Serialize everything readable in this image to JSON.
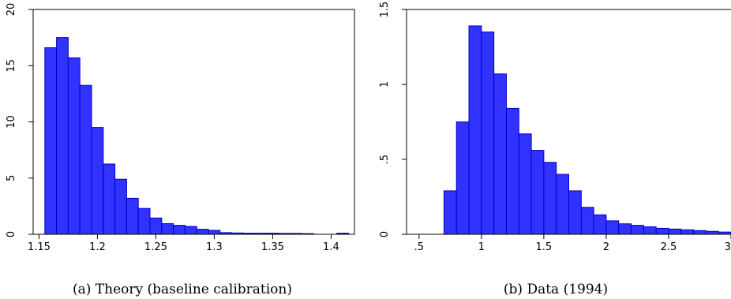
{
  "chart_data": [
    {
      "type": "bar",
      "caption": "(a)  Theory (baseline calibration)",
      "bar_color": "#3232ff",
      "xlim": [
        1.145,
        1.42
      ],
      "ylim": [
        0,
        20
      ],
      "xticks": [
        {
          "value": 1.15,
          "label": "1.15"
        },
        {
          "value": 1.2,
          "label": "1.2"
        },
        {
          "value": 1.25,
          "label": "1.25"
        },
        {
          "value": 1.3,
          "label": "1.3"
        },
        {
          "value": 1.35,
          "label": "1.35"
        },
        {
          "value": 1.4,
          "label": "1.4"
        }
      ],
      "yticks": [
        {
          "value": 0,
          "label": "0"
        },
        {
          "value": 5,
          "label": "5"
        },
        {
          "value": 10,
          "label": "10"
        },
        {
          "value": 15,
          "label": "15"
        },
        {
          "value": 20,
          "label": "20"
        }
      ],
      "bin_width": 0.01,
      "bins": [
        {
          "x0": 1.155,
          "value": 16.6
        },
        {
          "x0": 1.165,
          "value": 17.5
        },
        {
          "x0": 1.175,
          "value": 15.7
        },
        {
          "x0": 1.185,
          "value": 13.25
        },
        {
          "x0": 1.195,
          "value": 9.5
        },
        {
          "x0": 1.205,
          "value": 6.25
        },
        {
          "x0": 1.215,
          "value": 4.9
        },
        {
          "x0": 1.225,
          "value": 3.2
        },
        {
          "x0": 1.235,
          "value": 2.3
        },
        {
          "x0": 1.245,
          "value": 1.45
        },
        {
          "x0": 1.255,
          "value": 0.95
        },
        {
          "x0": 1.265,
          "value": 0.8
        },
        {
          "x0": 1.275,
          "value": 0.7
        },
        {
          "x0": 1.285,
          "value": 0.45
        },
        {
          "x0": 1.295,
          "value": 0.35
        },
        {
          "x0": 1.305,
          "value": 0.15
        },
        {
          "x0": 1.315,
          "value": 0.12
        },
        {
          "x0": 1.325,
          "value": 0.1
        },
        {
          "x0": 1.335,
          "value": 0.1
        },
        {
          "x0": 1.345,
          "value": 0.1
        },
        {
          "x0": 1.355,
          "value": 0.08
        },
        {
          "x0": 1.365,
          "value": 0.08
        },
        {
          "x0": 1.375,
          "value": 0.06
        },
        {
          "x0": 1.405,
          "value": 0.1
        }
      ]
    },
    {
      "type": "bar",
      "caption": "(b)  Data (1994)",
      "bar_color": "#3232ff",
      "xlim": [
        0.4,
        3.0
      ],
      "ylim": [
        0,
        1.5
      ],
      "xticks": [
        {
          "value": 0.5,
          "label": ".5"
        },
        {
          "value": 1,
          "label": "1"
        },
        {
          "value": 1.5,
          "label": "1.5"
        },
        {
          "value": 2,
          "label": "2"
        },
        {
          "value": 2.5,
          "label": "2.5"
        },
        {
          "value": 3,
          "label": "3"
        }
      ],
      "yticks": [
        {
          "value": 0,
          "label": "0"
        },
        {
          "value": 0.5,
          "label": ".5"
        },
        {
          "value": 1,
          "label": "1"
        },
        {
          "value": 1.5,
          "label": "1.5"
        }
      ],
      "bin_width": 0.1,
      "bins": [
        {
          "x0": 0.7,
          "value": 0.29
        },
        {
          "x0": 0.8,
          "value": 0.75
        },
        {
          "x0": 0.9,
          "value": 1.39
        },
        {
          "x0": 1.0,
          "value": 1.35
        },
        {
          "x0": 1.1,
          "value": 1.07
        },
        {
          "x0": 1.2,
          "value": 0.84
        },
        {
          "x0": 1.3,
          "value": 0.67
        },
        {
          "x0": 1.4,
          "value": 0.56
        },
        {
          "x0": 1.5,
          "value": 0.48
        },
        {
          "x0": 1.6,
          "value": 0.4
        },
        {
          "x0": 1.7,
          "value": 0.29
        },
        {
          "x0": 1.8,
          "value": 0.18
        },
        {
          "x0": 1.9,
          "value": 0.13
        },
        {
          "x0": 2.0,
          "value": 0.09
        },
        {
          "x0": 2.1,
          "value": 0.07
        },
        {
          "x0": 2.2,
          "value": 0.06
        },
        {
          "x0": 2.3,
          "value": 0.05
        },
        {
          "x0": 2.4,
          "value": 0.04
        },
        {
          "x0": 2.5,
          "value": 0.035
        },
        {
          "x0": 2.6,
          "value": 0.03
        },
        {
          "x0": 2.7,
          "value": 0.025
        },
        {
          "x0": 2.8,
          "value": 0.02
        },
        {
          "x0": 2.9,
          "value": 0.015
        }
      ]
    }
  ]
}
